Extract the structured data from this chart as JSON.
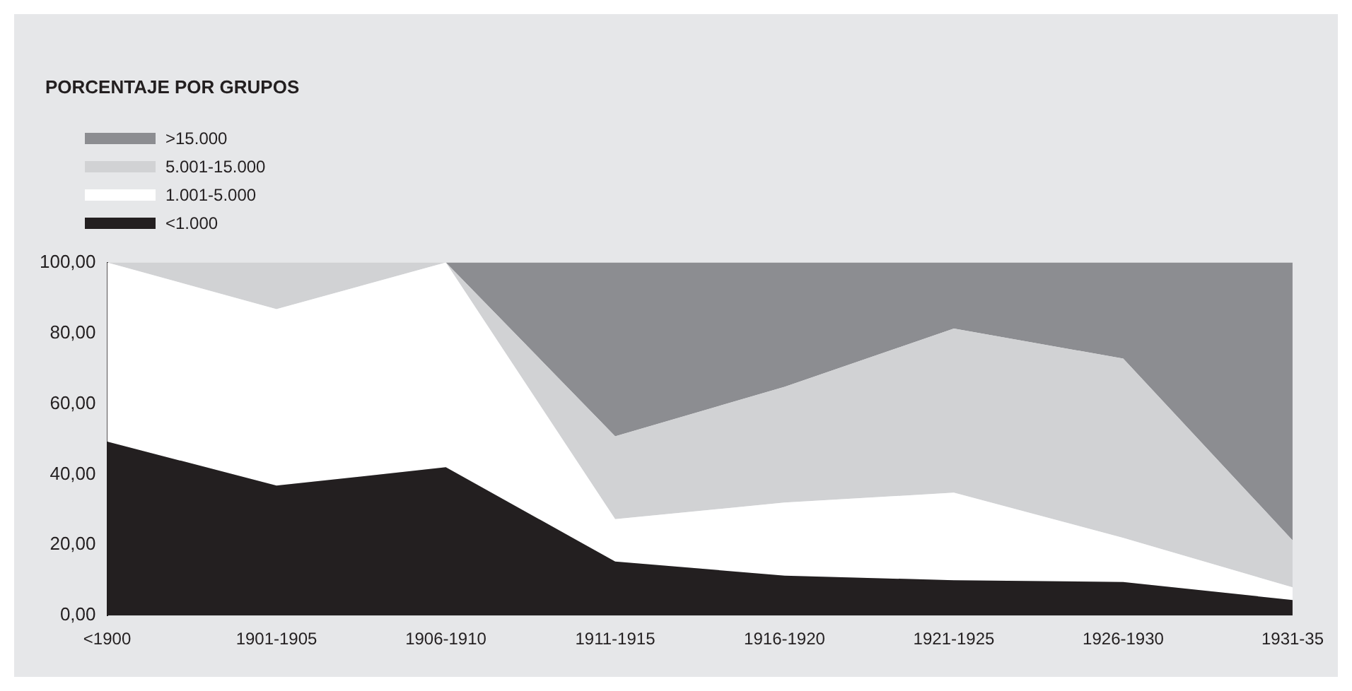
{
  "chart_data": {
    "type": "area",
    "title": "PORCENTAJE POR GRUPOS",
    "stacked": true,
    "categories": [
      "<1900",
      "1901-1905",
      "1906-1910",
      "1911-1915",
      "1916-1920",
      "1921-1925",
      "1926-1930",
      "1931-35"
    ],
    "series": [
      {
        "name": "<1.000",
        "color": "#231f20",
        "values": [
          49.3,
          36.8,
          42,
          15.3,
          11.3,
          10,
          9.5,
          4.4
        ]
      },
      {
        "name": "1.001-5.000",
        "color": "#ffffff",
        "values": [
          50.7,
          50,
          58,
          12,
          20.7,
          24.8,
          12.5,
          3.6
        ]
      },
      {
        "name": "5.001-15.000",
        "color": "#d1d2d4",
        "values": [
          0,
          13.2,
          0,
          23.5,
          32.8,
          46.5,
          50.8,
          13.3
        ]
      },
      {
        "name": ">15.000",
        "color": "#8c8d91",
        "values": [
          0,
          0,
          0,
          49.2,
          35.2,
          18.7,
          27.2,
          78.7
        ]
      }
    ],
    "ylim": [
      0,
      100
    ],
    "yticks": [
      {
        "value": 0,
        "label": "0,00"
      },
      {
        "value": 20,
        "label": "20,00"
      },
      {
        "value": 40,
        "label": "40,00"
      },
      {
        "value": 60,
        "label": "60,00"
      },
      {
        "value": 80,
        "label": "80,00"
      },
      {
        "value": 100,
        "label": "100,00"
      }
    ],
    "grid": false,
    "legend": "top left"
  }
}
